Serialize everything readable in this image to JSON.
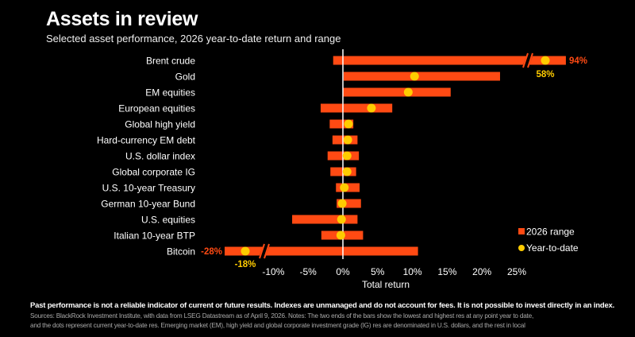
{
  "title": "Assets in review",
  "subtitle": "Selected asset performance, 2026 year-to-date return and range",
  "chart_data": {
    "type": "bar",
    "subtype": "range with dot",
    "categories": [
      "Brent crude",
      "Gold",
      "EM equities",
      "European equities",
      "Global high yield",
      "Hard-currency EM debt",
      "U.S. dollar index",
      "Global corporate IG",
      "U.S. 10-year Treasury",
      "German 10-year Bund",
      "U.S. equities",
      "Italian 10-year BTP",
      "Bitcoin"
    ],
    "series": [
      {
        "name": "2026 range",
        "low": [
          -1.4,
          0.1,
          0,
          -3.2,
          -1.9,
          -1.5,
          -2.2,
          -1.8,
          -1.0,
          -0.9,
          -7.3,
          -3.1,
          -28
        ],
        "high": [
          94,
          22.6,
          15.5,
          7.1,
          1.5,
          2.1,
          2.3,
          1.9,
          2.4,
          2.6,
          2.1,
          2.9,
          10.8
        ],
        "color": "#ff4a13"
      },
      {
        "name": "Year-to-date",
        "values": [
          58,
          10.3,
          9.4,
          4.1,
          0.8,
          0.7,
          0.6,
          0.6,
          0.2,
          -0.1,
          -0.2,
          -0.3,
          -18
        ],
        "color": "#ffcc00"
      }
    ],
    "annotations": [
      {
        "label": "94%",
        "color": "#ff4a13"
      },
      {
        "label": "58%",
        "color": "#ffcc00"
      },
      {
        "label": "-28%",
        "color": "#ff4a13"
      },
      {
        "label": "-18%",
        "color": "#ffcc00"
      }
    ],
    "xlabel": "Total return",
    "xticks": [
      "-10%",
      "-5%",
      "0%",
      "5%",
      "10%",
      "15%",
      "20%",
      "25%"
    ],
    "xtick_values": [
      -10,
      -5,
      0,
      5,
      10,
      15,
      20,
      25
    ],
    "xlim": [
      -12,
      27
    ],
    "axis_breaks": true,
    "grid": false,
    "legend_position": "right"
  },
  "footer": {
    "disclaimer": "Past performance is not a reliable indicator of current or future results. Indexes are unmanaged and do not account for fees. It is not possible to invest directly in an index.",
    "notes": [
      "Sources: BlackRock Investment Institute, with data from LSEG Datastream as of April 9, 2026. Notes: The two ends of the bars show the lowest and highest res at any point year to date,",
      "and the dots represent current year-to-date res. Emerging market (EM), high yield and global corporate investment grade (IG) res are denominated in U.S. dollars, and the rest in local"
    ]
  }
}
